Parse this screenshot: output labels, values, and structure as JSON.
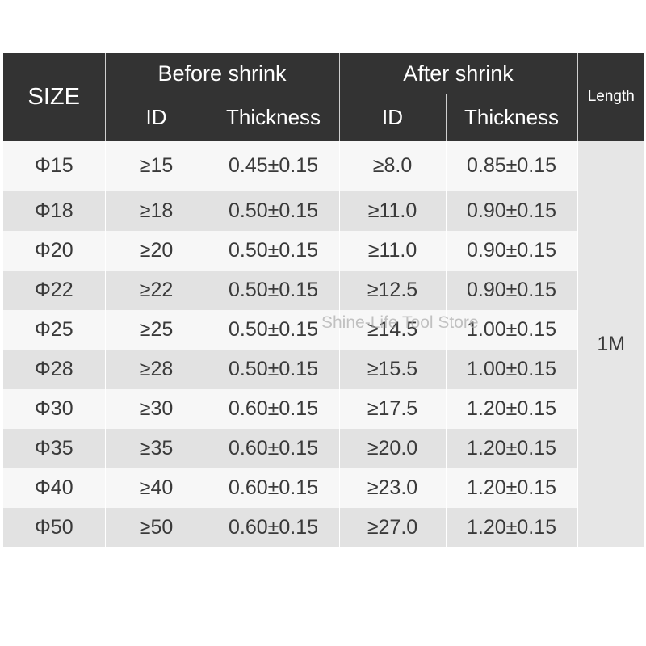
{
  "header": {
    "size": "SIZE",
    "before_shrink": "Before shrink",
    "after_shrink": "After shrink",
    "length": "Length",
    "id": "ID",
    "thickness": "Thickness"
  },
  "length_value": "1M",
  "rows": [
    {
      "size": "Φ15",
      "before_id": "≥15",
      "before_thickness": "0.45±0.15",
      "after_id": "≥8.0",
      "after_thickness": "0.85±0.15"
    },
    {
      "size": "Φ18",
      "before_id": "≥18",
      "before_thickness": "0.50±0.15",
      "after_id": "≥11.0",
      "after_thickness": "0.90±0.15"
    },
    {
      "size": "Φ20",
      "before_id": "≥20",
      "before_thickness": "0.50±0.15",
      "after_id": "≥11.0",
      "after_thickness": "0.90±0.15"
    },
    {
      "size": "Φ22",
      "before_id": "≥22",
      "before_thickness": "0.50±0.15",
      "after_id": "≥12.5",
      "after_thickness": "0.90±0.15"
    },
    {
      "size": "Φ25",
      "before_id": "≥25",
      "before_thickness": "0.50±0.15",
      "after_id": "≥14.5",
      "after_thickness": "1.00±0.15"
    },
    {
      "size": "Φ28",
      "before_id": "≥28",
      "before_thickness": "0.50±0.15",
      "after_id": "≥15.5",
      "after_thickness": "1.00±0.15"
    },
    {
      "size": "Φ30",
      "before_id": "≥30",
      "before_thickness": "0.60±0.15",
      "after_id": "≥17.5",
      "after_thickness": "1.20±0.15"
    },
    {
      "size": "Φ35",
      "before_id": "≥35",
      "before_thickness": "0.60±0.15",
      "after_id": "≥20.0",
      "after_thickness": "1.20±0.15"
    },
    {
      "size": "Φ40",
      "before_id": "≥40",
      "before_thickness": "0.60±0.15",
      "after_id": "≥23.0",
      "after_thickness": "1.20±0.15"
    },
    {
      "size": "Φ50",
      "before_id": "≥50",
      "before_thickness": "0.60±0.15",
      "after_id": "≥27.0",
      "after_thickness": "1.20±0.15"
    }
  ],
  "watermark": "Shine-Life Tool Store"
}
